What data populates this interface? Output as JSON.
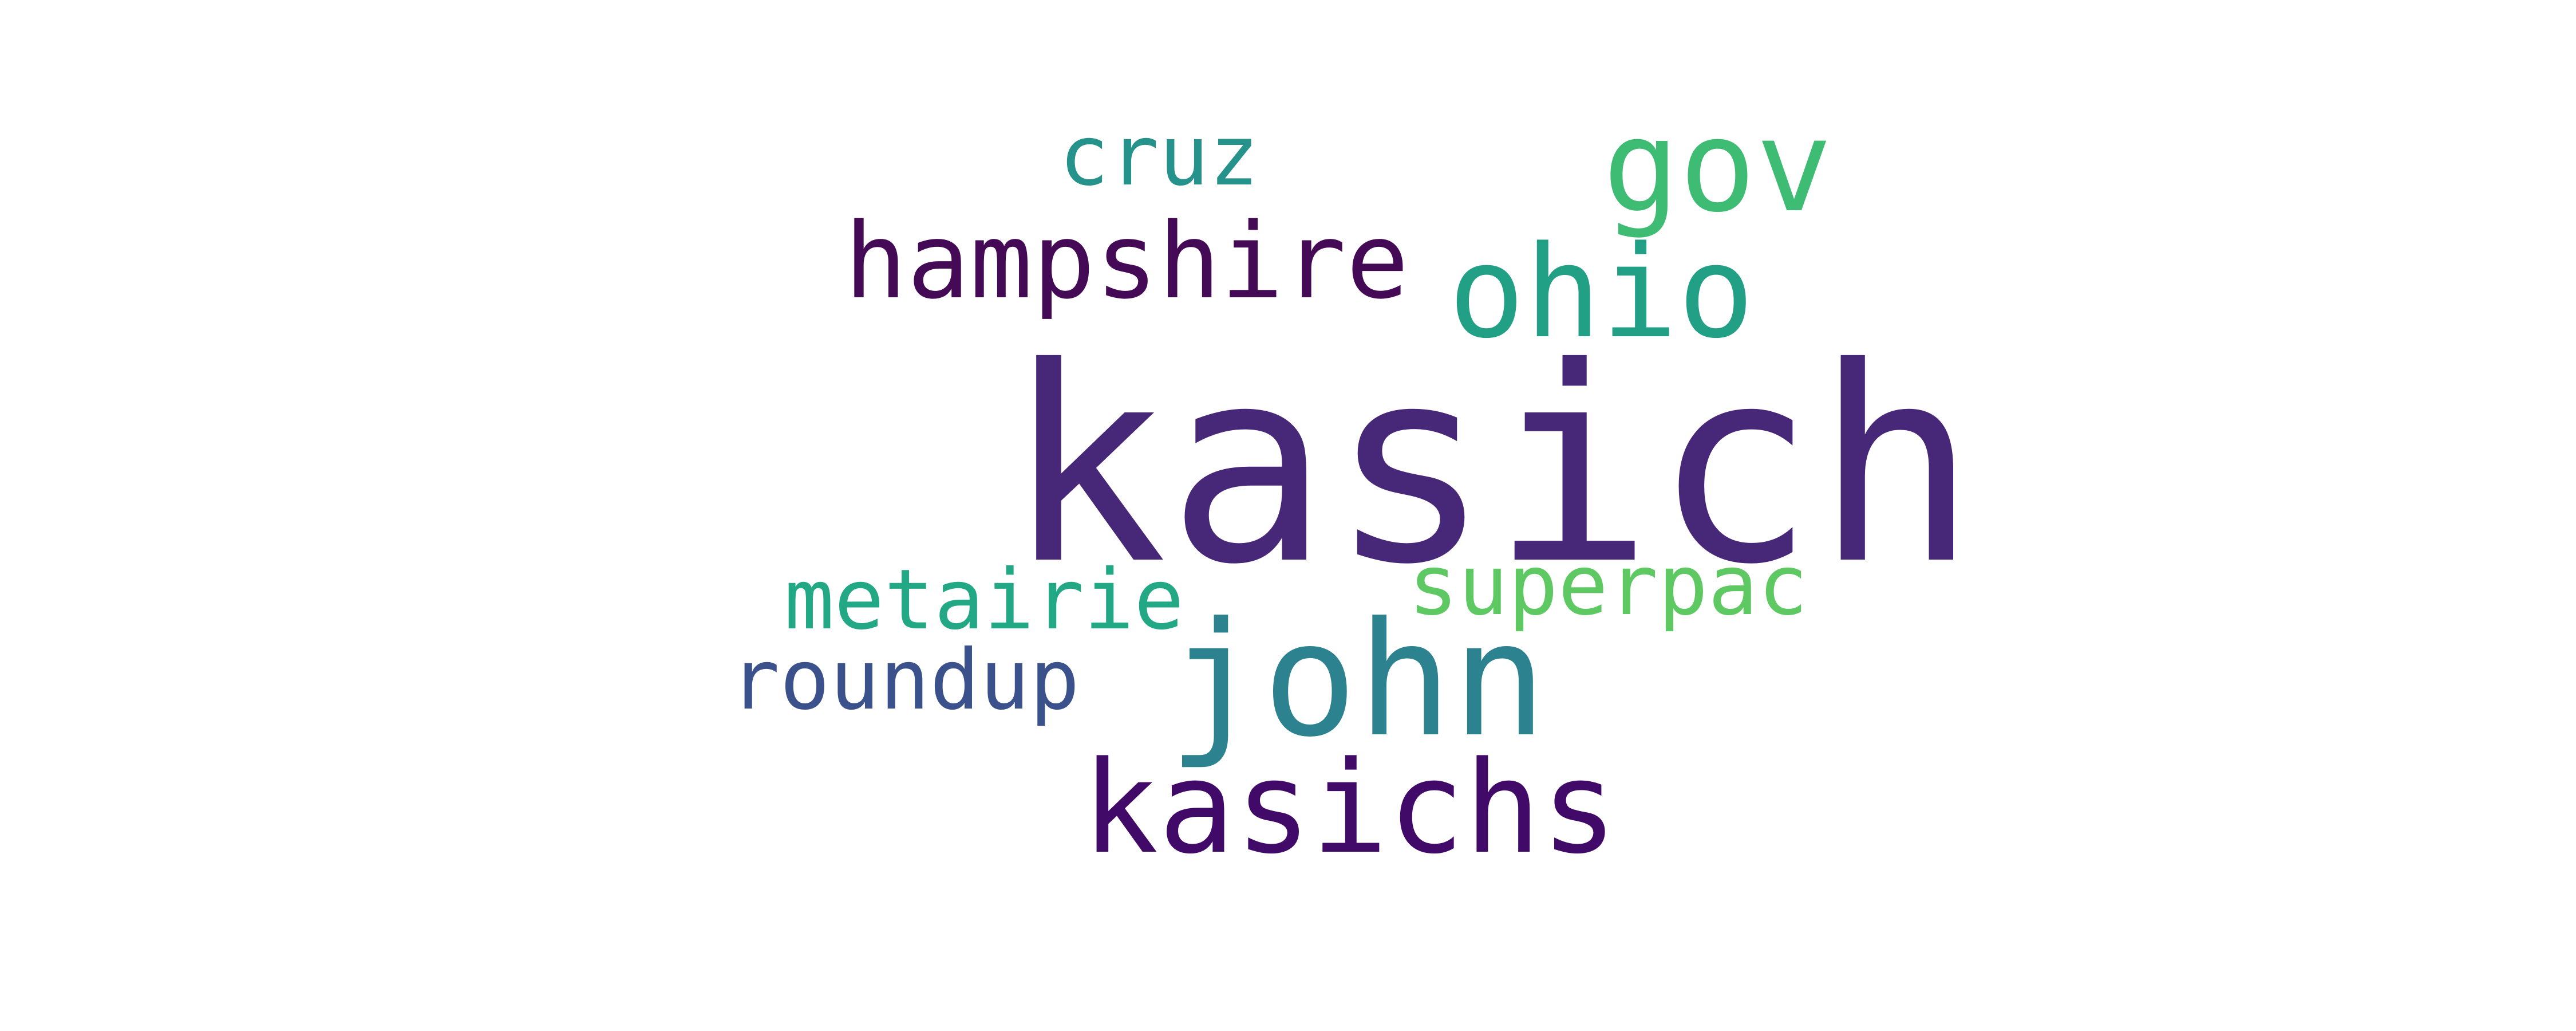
{
  "words": {
    "kasich": {
      "text": "kasich",
      "color": "#472777"
    },
    "john": {
      "text": "john",
      "color": "#2c828e"
    },
    "kasichs": {
      "text": "kasichs",
      "color": "#420a68"
    },
    "ohio": {
      "text": "ohio",
      "color": "#21a085"
    },
    "gov": {
      "text": "gov",
      "color": "#3fbc73"
    },
    "hampshire": {
      "text": "hampshire",
      "color": "#440a56"
    },
    "cruz": {
      "text": "cruz",
      "color": "#26928c"
    },
    "metairie": {
      "text": "metairie",
      "color": "#22a884"
    },
    "superpac": {
      "text": "superpac",
      "color": "#5ec962"
    },
    "roundup": {
      "text": "roundup",
      "color": "#3b518b"
    }
  }
}
